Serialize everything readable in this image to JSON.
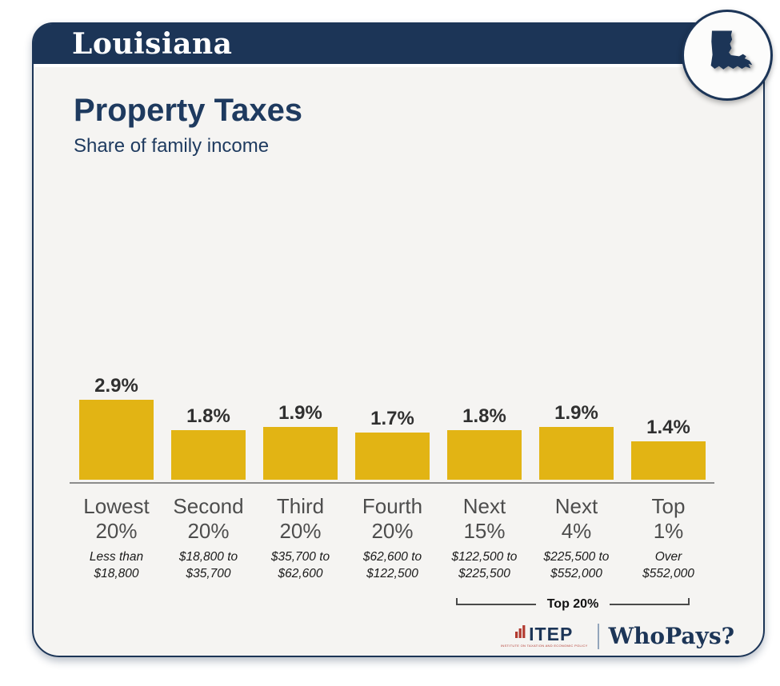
{
  "header": {
    "state": "Louisiana"
  },
  "badge": {
    "icon": "louisiana-state-silhouette"
  },
  "main": {
    "title": "Property Taxes",
    "subtitle": "Share of family income"
  },
  "chart_data": {
    "type": "bar",
    "title": "Property Taxes",
    "subtitle": "Share of family income",
    "unit": "% of family income",
    "bar_color": "#e2b414",
    "ylim": [
      0,
      2.9
    ],
    "grid": false,
    "legend": "none",
    "categories": [
      {
        "label_lines": [
          "Lowest",
          "20%"
        ],
        "income_lines": [
          "Less than",
          "$18,800"
        ],
        "value": 2.9,
        "value_label": "2.9%"
      },
      {
        "label_lines": [
          "Second",
          "20%"
        ],
        "income_lines": [
          "$18,800 to",
          "$35,700"
        ],
        "value": 1.8,
        "value_label": "1.8%"
      },
      {
        "label_lines": [
          "Third",
          "20%"
        ],
        "income_lines": [
          "$35,700 to",
          "$62,600"
        ],
        "value": 1.9,
        "value_label": "1.9%"
      },
      {
        "label_lines": [
          "Fourth",
          "20%"
        ],
        "income_lines": [
          "$62,600 to",
          "$122,500"
        ],
        "value": 1.7,
        "value_label": "1.7%"
      },
      {
        "label_lines": [
          "Next",
          "15%"
        ],
        "income_lines": [
          "$122,500 to",
          "$225,500"
        ],
        "value": 1.8,
        "value_label": "1.8%"
      },
      {
        "label_lines": [
          "Next",
          "4%"
        ],
        "income_lines": [
          "$225,500 to",
          "$552,000"
        ],
        "value": 1.9,
        "value_label": "1.9%"
      },
      {
        "label_lines": [
          "Top",
          "1%"
        ],
        "income_lines": [
          "Over",
          "$552,000"
        ],
        "value": 1.4,
        "value_label": "1.4%"
      }
    ],
    "bracket": {
      "label": "Top 20%",
      "spans_categories": [
        "Next 15%",
        "Next 4%",
        "Top 1%"
      ]
    }
  },
  "footer": {
    "itep": "ITEP",
    "itep_tagline": "INSTITUTE ON TAXATION AND ECONOMIC POLICY",
    "whopays": "WhoPays?"
  },
  "colors": {
    "navy": "#1c3557",
    "title_navy": "#1e3a5f",
    "gold": "#e2b414",
    "itep_red": "#b23a30",
    "card_bg": "#f5f4f2",
    "axis_gray": "#8c8c8c"
  }
}
